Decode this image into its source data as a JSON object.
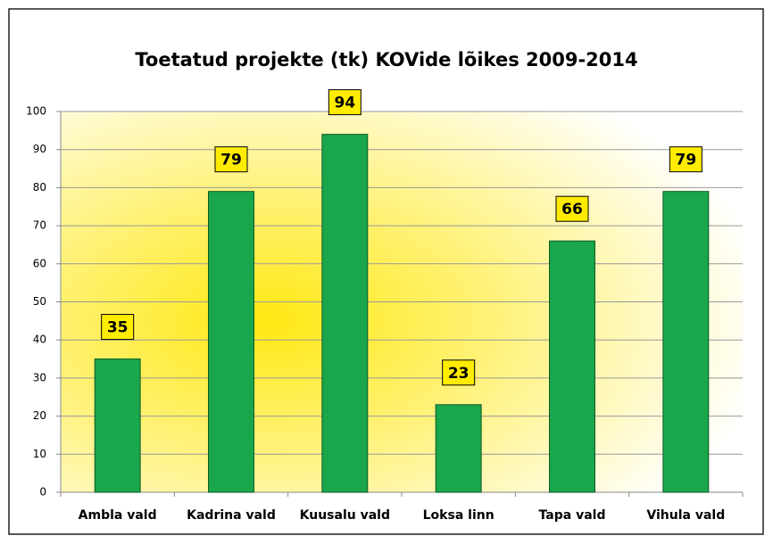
{
  "chart_data": {
    "type": "bar",
    "title": "Toetatud projekte (tk) KOVide lõikes 2009-2014",
    "categories": [
      "Ambla vald",
      "Kadrina vald",
      "Kuusalu vald",
      "Loksa linn",
      "Tapa vald",
      "Vihula vald"
    ],
    "values": [
      35,
      79,
      94,
      23,
      66,
      79
    ],
    "color": "#1aa64b",
    "ylim": [
      0,
      100
    ],
    "yticks": [
      0,
      10,
      20,
      30,
      40,
      50,
      60,
      70,
      80,
      90,
      100
    ],
    "grid": true,
    "data_labels": true
  }
}
